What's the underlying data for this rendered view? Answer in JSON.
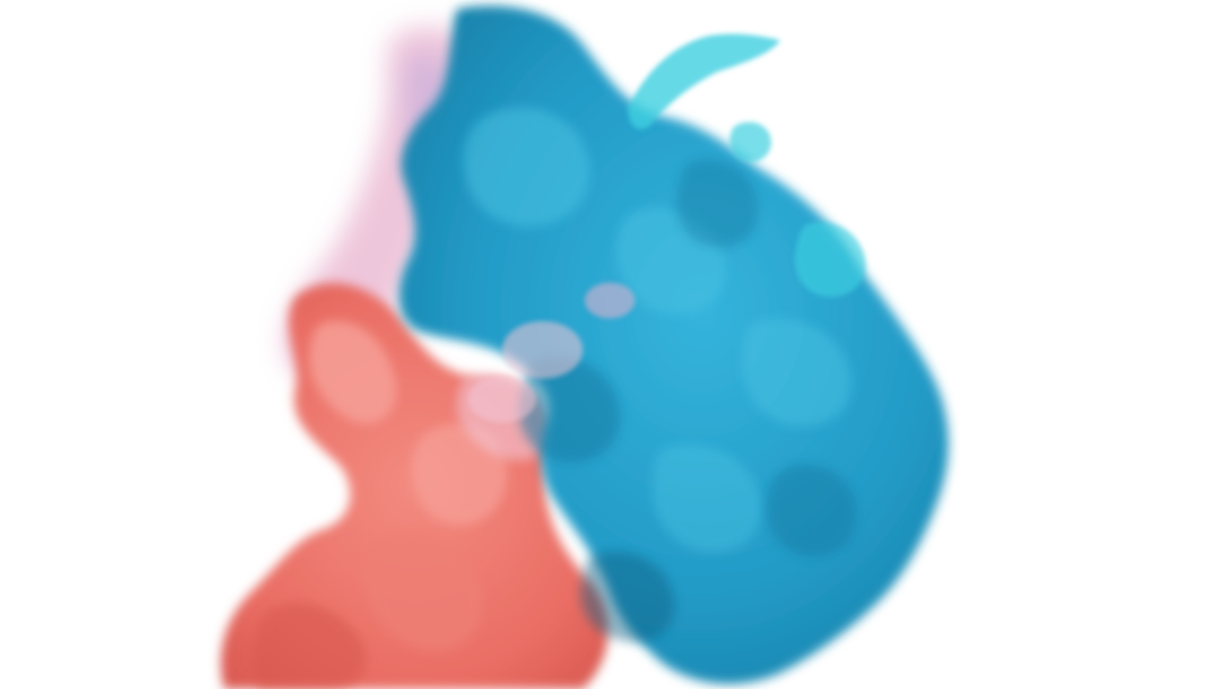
{
  "scene": {
    "subject": "ink-cloud",
    "background_color": "#ffffff",
    "colors": {
      "blue_light": "#4cc3e3",
      "blue_main": "#2aa6cf",
      "blue_mid": "#1f95bf",
      "blue_shadow": "#157ca4",
      "blue_deep": "#0f5f82",
      "teal_wisp": "#3fd0e0",
      "pink_light": "#f3c6d6",
      "pink_wisp": "#e9b3cf",
      "coral_light": "#f7a29a",
      "coral_main": "#ee7f75",
      "coral_deep": "#d8584f",
      "purple_veil": "#c79fd0"
    }
  }
}
